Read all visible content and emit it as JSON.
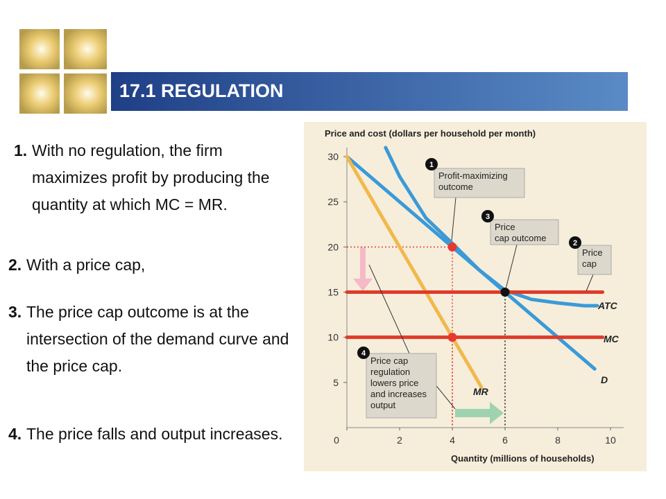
{
  "header": {
    "title": "17.1 REGULATION"
  },
  "points": [
    {
      "number": "1.",
      "text": "With no regulation, the firm maximizes profit by producing the quantity at which MC = MR."
    },
    {
      "number": "2.",
      "text": "With a price cap,"
    },
    {
      "number": "3.",
      "text": "The price cap outcome is at the intersection of the demand curve and the price cap."
    },
    {
      "number": "4.",
      "text": "The price falls and output increases."
    }
  ],
  "chart_data": {
    "type": "line",
    "ylabel": "Price and cost (dollars per household per month)",
    "xlabel": "Quantity (millions of households)",
    "xlim": [
      0,
      10.5
    ],
    "xticks": [
      0,
      2,
      4,
      6,
      8,
      10
    ],
    "ylim": [
      0,
      31
    ],
    "yticks": [
      5,
      10,
      15,
      20,
      25,
      30
    ],
    "series": [
      {
        "name": "D",
        "color": "#3b9ad8",
        "x": [
          0,
          9.4
        ],
        "values": [
          30,
          6.5
        ]
      },
      {
        "name": "MR",
        "color": "#f2b84b",
        "x": [
          0,
          5.1
        ],
        "values": [
          30,
          4.5
        ]
      },
      {
        "name": "MC",
        "color": "#e03a2a",
        "x": [
          0,
          9.7
        ],
        "values": [
          10,
          10
        ]
      },
      {
        "name": "ATC",
        "color": "#3b9ad8",
        "x": [
          1.47,
          2,
          3,
          4,
          5,
          6,
          7,
          8,
          9,
          9.5
        ],
        "values": [
          31,
          27.8,
          23.2,
          20.4,
          17.5,
          15.2,
          14.2,
          13.8,
          13.5,
          13.5
        ]
      },
      {
        "name": "Price cap",
        "color": "#e03a2a",
        "x": [
          0,
          9.7
        ],
        "values": [
          15,
          15
        ]
      }
    ],
    "markers": [
      {
        "x": 4,
        "y": 20,
        "color": "#e53a2f"
      },
      {
        "x": 4,
        "y": 10,
        "color": "#e53a2f"
      },
      {
        "x": 6,
        "y": 15,
        "color": "#111111"
      }
    ],
    "annotations": [
      {
        "number": "1",
        "lines": [
          "Profit-maximizing",
          "outcome"
        ]
      },
      {
        "number": "2",
        "lines": [
          "Price",
          "cap"
        ]
      },
      {
        "number": "3",
        "lines": [
          "Price",
          "cap outcome"
        ]
      },
      {
        "number": "4",
        "lines": [
          "Price cap",
          "regulation",
          "lowers price",
          "and increases",
          "output"
        ]
      }
    ]
  }
}
